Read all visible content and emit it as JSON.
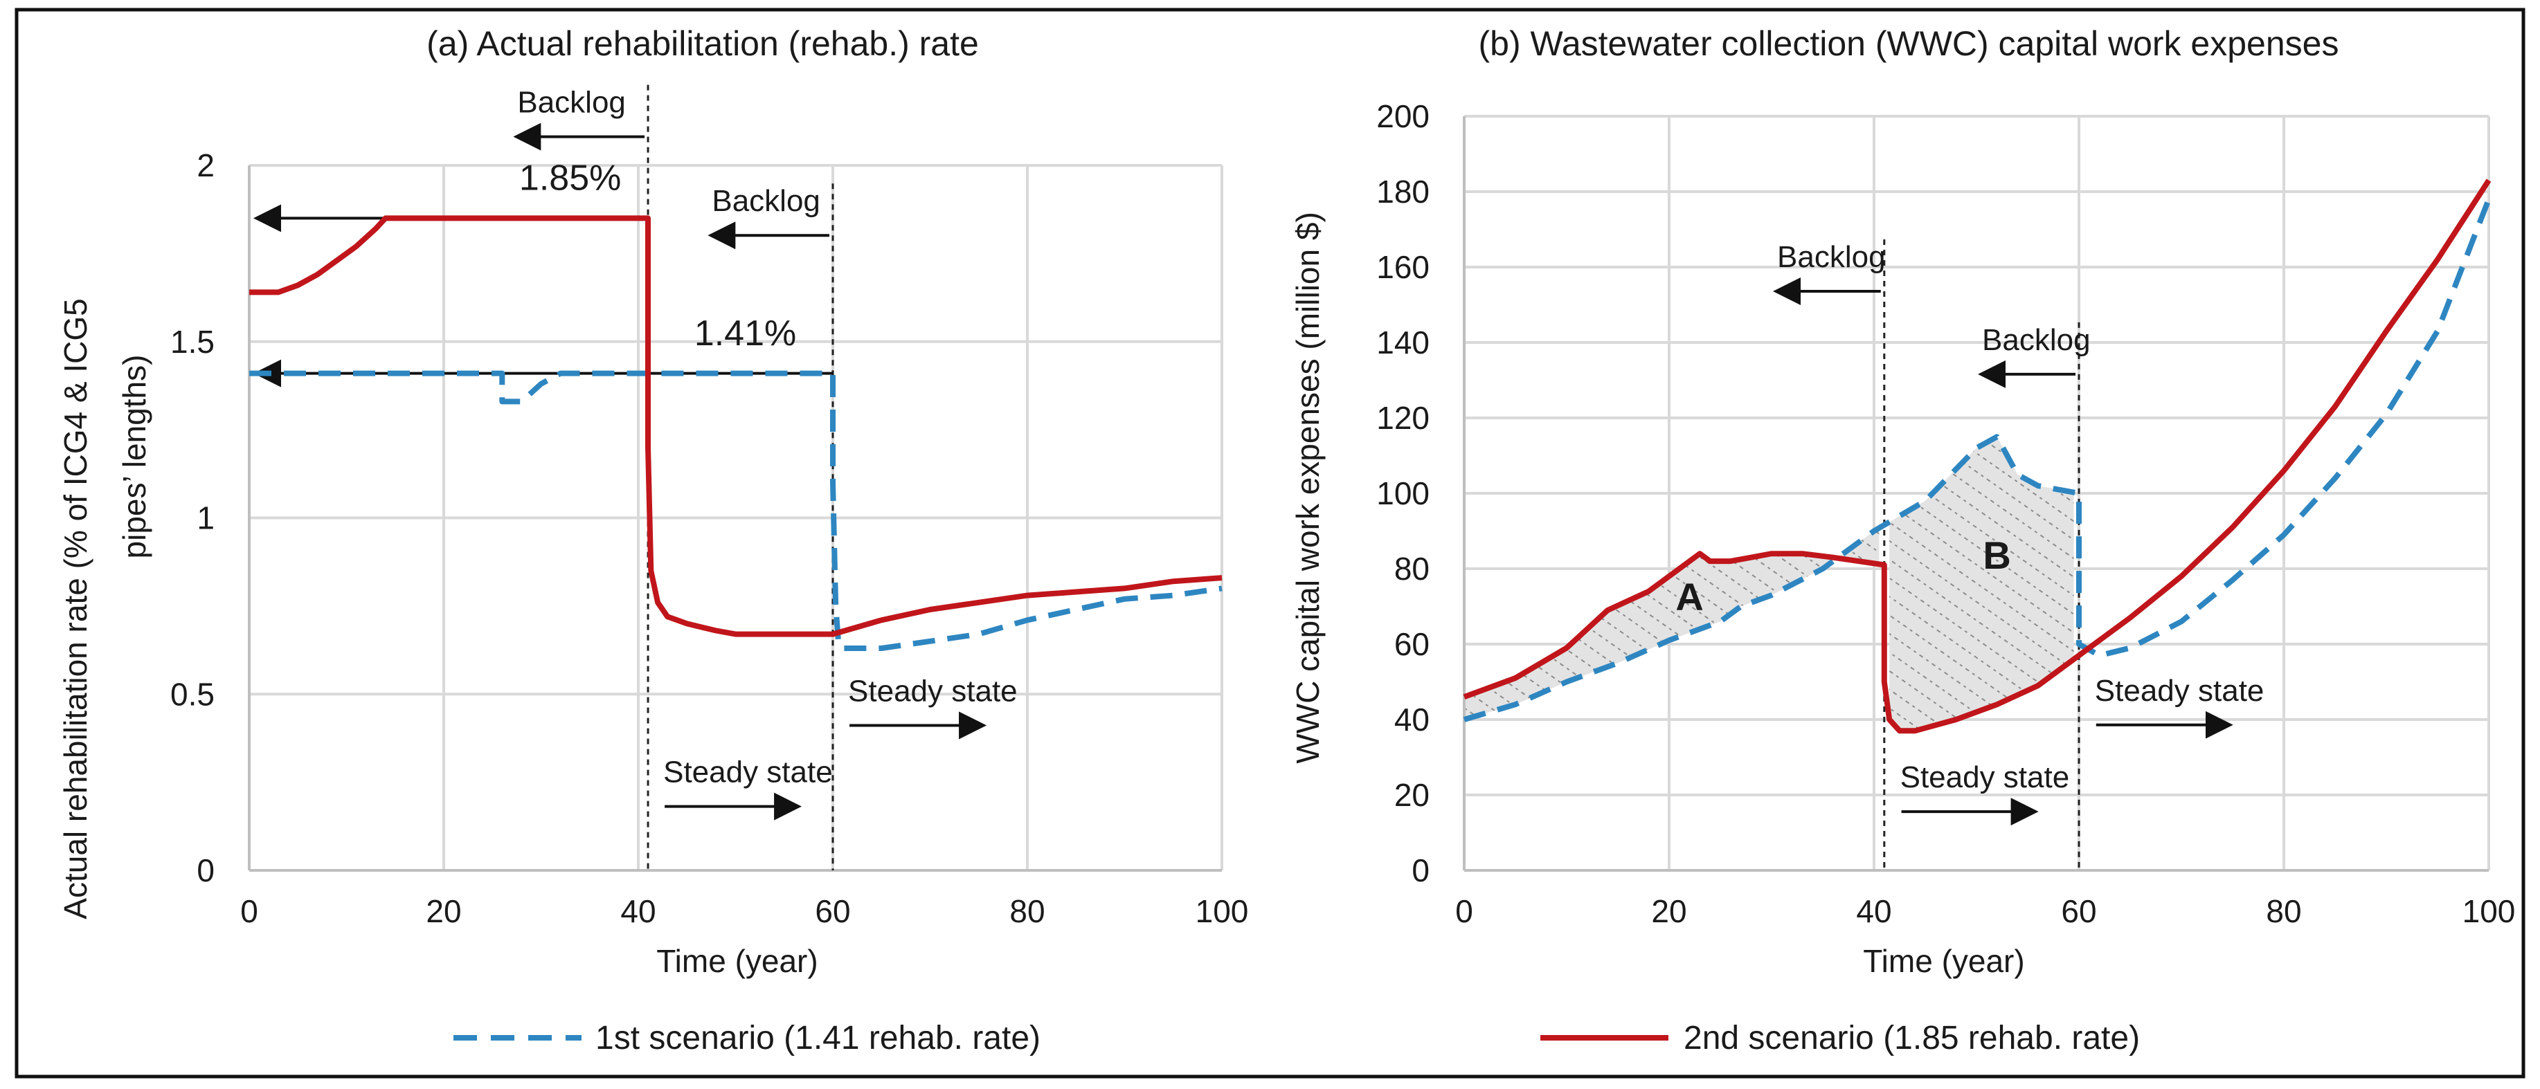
{
  "colors": {
    "series1": "#2e86c1",
    "series2": "#c0161b",
    "grid": "#d9d9d9",
    "hatch": "#9a9a9a",
    "frame": "#111111"
  },
  "legend": [
    {
      "label": "1st scenario (1.41 rehab. rate)",
      "style": "dashed",
      "color": "#2e86c1"
    },
    {
      "label": "2nd scenario (1.85 rehab. rate)",
      "style": "solid",
      "color": "#c0161b"
    }
  ],
  "chart_data": [
    {
      "type": "line",
      "title": "(a) Actual rehabilitation (rehab.) rate",
      "xlabel": "Time (year)",
      "ylabel_line1": "Actual rehabilitation rate (% of ICG4 & ICG5",
      "ylabel_line2": "pipes’ lengths)",
      "xlim": [
        0,
        100
      ],
      "ylim": [
        0,
        2
      ],
      "xticks": [
        "0",
        "20",
        "40",
        "60",
        "80",
        "100"
      ],
      "yticks": [
        "0",
        "0.5",
        "1",
        "1.5",
        "2"
      ],
      "series": [
        {
          "name": "1st scenario (1.41 rehab. rate)",
          "style": "dashed",
          "points": [
            [
              0,
              1.41
            ],
            [
              26,
              1.41
            ],
            [
              26,
              1.33
            ],
            [
              28,
              1.33
            ],
            [
              30,
              1.38
            ],
            [
              32,
              1.41
            ],
            [
              60,
              1.41
            ],
            [
              60,
              1.1
            ],
            [
              60.3,
              0.75
            ],
            [
              60.6,
              0.64
            ],
            [
              61,
              0.63
            ],
            [
              65,
              0.63
            ],
            [
              70,
              0.65
            ],
            [
              75,
              0.67
            ],
            [
              80,
              0.71
            ],
            [
              85,
              0.74
            ],
            [
              90,
              0.77
            ],
            [
              95,
              0.78
            ],
            [
              100,
              0.8
            ]
          ]
        },
        {
          "name": "2nd scenario (1.85 rehab. rate)",
          "style": "solid",
          "points": [
            [
              0,
              1.64
            ],
            [
              3,
              1.64
            ],
            [
              5,
              1.66
            ],
            [
              7,
              1.69
            ],
            [
              9,
              1.73
            ],
            [
              11,
              1.77
            ],
            [
              13,
              1.82
            ],
            [
              14,
              1.85
            ],
            [
              41,
              1.85
            ],
            [
              41,
              1.2
            ],
            [
              41.3,
              0.85
            ],
            [
              42,
              0.76
            ],
            [
              43,
              0.72
            ],
            [
              45,
              0.7
            ],
            [
              48,
              0.68
            ],
            [
              50,
              0.67
            ],
            [
              55,
              0.67
            ],
            [
              60,
              0.67
            ],
            [
              65,
              0.71
            ],
            [
              70,
              0.74
            ],
            [
              75,
              0.76
            ],
            [
              80,
              0.78
            ],
            [
              85,
              0.79
            ],
            [
              90,
              0.8
            ],
            [
              95,
              0.82
            ],
            [
              100,
              0.83
            ]
          ]
        }
      ],
      "annotations": [
        {
          "text": "1.85%",
          "x": 33,
          "y": 1.93
        },
        {
          "text": "1.41%",
          "x": 51,
          "y": 1.49
        },
        {
          "text": "Backlog",
          "x": 27,
          "y": 2.15,
          "arrow": "left",
          "line_x": 41
        },
        {
          "text": "Backlog",
          "x": 47,
          "y": 1.87,
          "arrow": "left",
          "line_x": 60
        },
        {
          "text": "Steady state",
          "x": 61,
          "y": 0.48,
          "arrow": "right"
        },
        {
          "text": "Steady state",
          "x": 42,
          "y": 0.25,
          "arrow": "right"
        }
      ]
    },
    {
      "type": "line",
      "title": "(b) Wastewater collection (WWC) capital work expenses",
      "xlabel": "Time (year)",
      "ylabel": "WWC capital work expenses (million $)",
      "xlim": [
        0,
        100
      ],
      "ylim": [
        0,
        200
      ],
      "xticks": [
        "0",
        "20",
        "40",
        "60",
        "80",
        "100"
      ],
      "yticks": [
        "0",
        "20",
        "40",
        "60",
        "80",
        "100",
        "120",
        "140",
        "160",
        "180",
        "200"
      ],
      "series": [
        {
          "name": "1st scenario (1.41 rehab. rate)",
          "style": "dashed",
          "points": [
            [
              0,
              40
            ],
            [
              5,
              44
            ],
            [
              10,
              50
            ],
            [
              15,
              55
            ],
            [
              20,
              61
            ],
            [
              25,
              66
            ],
            [
              27,
              70
            ],
            [
              30,
              73
            ],
            [
              35,
              80
            ],
            [
              40,
              90
            ],
            [
              45,
              98
            ],
            [
              50,
              112
            ],
            [
              52,
              115
            ],
            [
              54,
              105
            ],
            [
              56,
              102
            ],
            [
              60,
              100
            ],
            [
              60,
              60
            ],
            [
              62,
              57
            ],
            [
              65,
              59
            ],
            [
              70,
              66
            ],
            [
              75,
              77
            ],
            [
              80,
              89
            ],
            [
              85,
              104
            ],
            [
              90,
              121
            ],
            [
              95,
              143
            ],
            [
              100,
              178
            ]
          ]
        },
        {
          "name": "2nd scenario (1.85 rehab. rate)",
          "style": "solid",
          "points": [
            [
              0,
              46
            ],
            [
              5,
              51
            ],
            [
              10,
              59
            ],
            [
              14,
              69
            ],
            [
              18,
              74
            ],
            [
              23,
              84
            ],
            [
              24,
              82
            ],
            [
              26,
              82
            ],
            [
              30,
              84
            ],
            [
              33,
              84
            ],
            [
              36,
              83
            ],
            [
              41,
              81
            ],
            [
              41,
              50
            ],
            [
              41.5,
              40
            ],
            [
              42.5,
              37
            ],
            [
              44,
              37
            ],
            [
              48,
              40
            ],
            [
              52,
              44
            ],
            [
              56,
              49
            ],
            [
              60,
              57
            ],
            [
              65,
              67
            ],
            [
              70,
              78
            ],
            [
              75,
              91
            ],
            [
              80,
              106
            ],
            [
              85,
              123
            ],
            [
              90,
              143
            ],
            [
              95,
              162
            ],
            [
              100,
              183
            ]
          ]
        }
      ],
      "regions": [
        {
          "label": "A",
          "x": 22,
          "y": 69
        },
        {
          "label": "B",
          "x": 52,
          "y": 80
        }
      ],
      "annotations": [
        {
          "text": "Backlog",
          "x": 30,
          "y": 160,
          "arrow": "left",
          "line_x": 41
        },
        {
          "text": "Backlog",
          "x": 50,
          "y": 138,
          "arrow": "left",
          "line_x": 60
        },
        {
          "text": "Steady state",
          "x": 61,
          "y": 45,
          "arrow": "right"
        },
        {
          "text": "Steady state",
          "x": 42,
          "y": 22,
          "arrow": "right"
        }
      ]
    }
  ]
}
